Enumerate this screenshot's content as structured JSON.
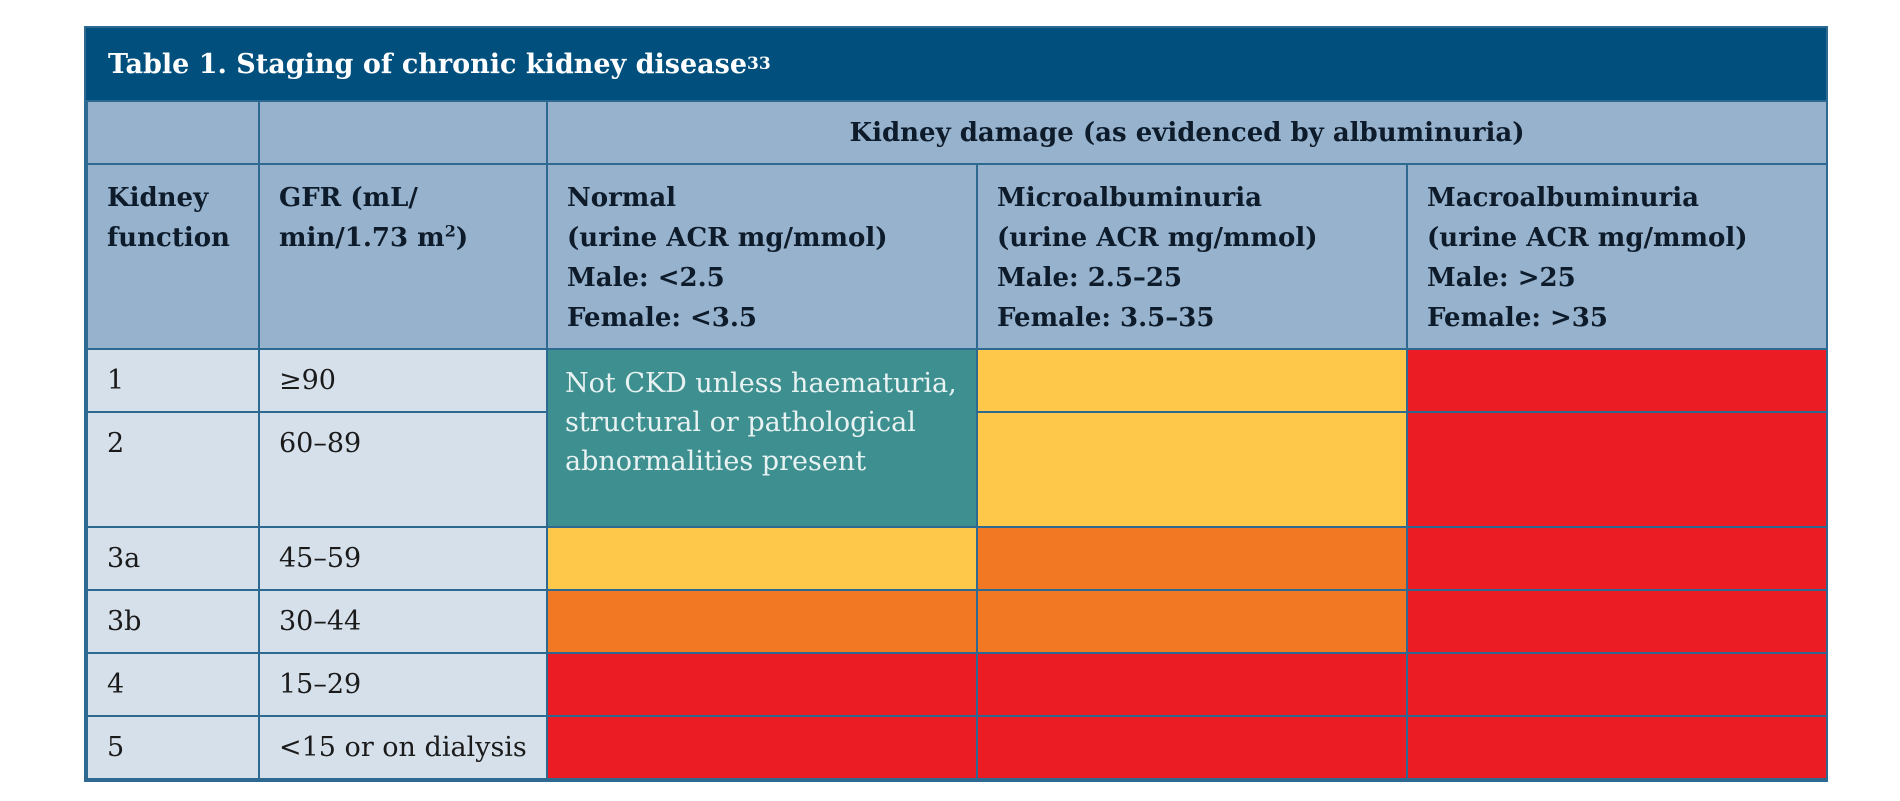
{
  "table": {
    "title": "Table 1. Staging of chronic kidney disease",
    "title_ref": "33",
    "span_header": "Kidney damage (as evidenced by albuminuria)",
    "col_kidney_function": [
      "Kidney",
      "function"
    ],
    "col_gfr": [
      "GFR (mL/",
      "min/1.73 m",
      "2",
      ")"
    ],
    "col_normal": [
      "Normal",
      "(urine ACR mg/mmol)",
      "Male: <2.5",
      "Female: <3.5"
    ],
    "col_micro": [
      "Microalbuminuria",
      "(urine ACR mg/mmol)",
      "Male: 2.5–25",
      "Female: 3.5–35"
    ],
    "col_macro": [
      "Macroalbuminuria",
      "(urine ACR mg/mmol)",
      "Male: >25",
      "Female: >35"
    ],
    "rows": [
      {
        "stage": "1",
        "gfr": "≥90"
      },
      {
        "stage": "2",
        "gfr": "60–89"
      },
      {
        "stage": "3a",
        "gfr": "45–59"
      },
      {
        "stage": "3b",
        "gfr": "30–44"
      },
      {
        "stage": "4",
        "gfr": "15–29"
      },
      {
        "stage": "5",
        "gfr": "<15 or on dialysis"
      }
    ],
    "not_ckd_note": "Not CKD unless haematuria, structural or pathological abnormalities present",
    "colors": {
      "title_bg": "#004f7d",
      "header_bg": "#97b2cd",
      "label_bg": "#d6e0eb",
      "teal": "#3e8f8f",
      "yellow": "#fec84a",
      "orange": "#f27823",
      "red": "#ec1c24"
    },
    "risk_grid": [
      [
        "teal",
        "yellow",
        "red"
      ],
      [
        "teal",
        "yellow",
        "red"
      ],
      [
        "yellow",
        "orange",
        "red"
      ],
      [
        "orange",
        "orange",
        "red"
      ],
      [
        "red",
        "red",
        "red"
      ],
      [
        "red",
        "red",
        "red"
      ]
    ]
  }
}
